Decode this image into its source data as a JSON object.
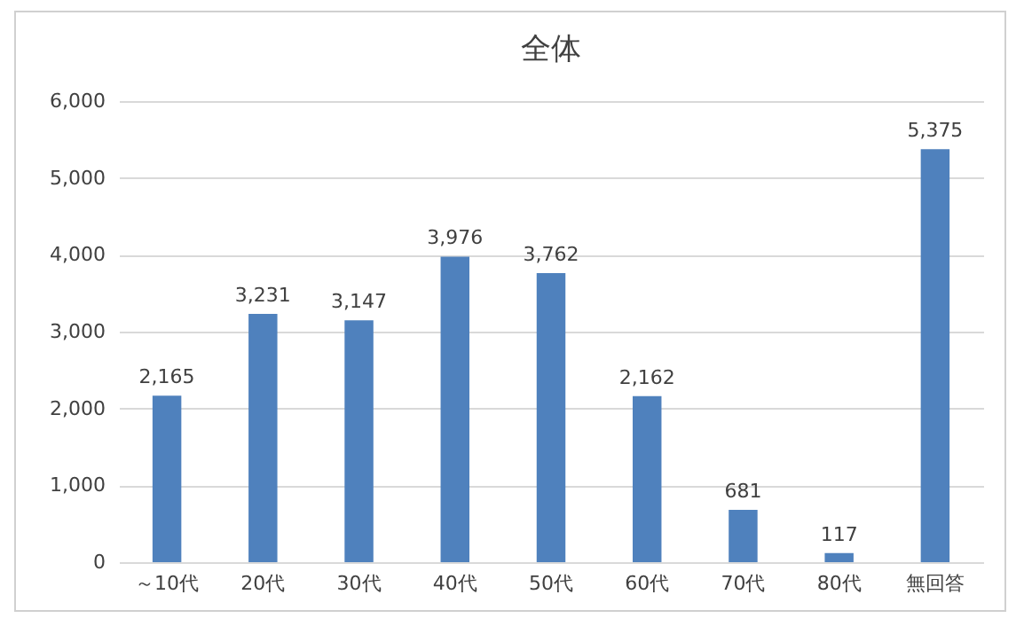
{
  "chart_data": {
    "type": "bar",
    "title": "全体",
    "categories": [
      "～10代",
      "20代",
      "30代",
      "40代",
      "50代",
      "60代",
      "70代",
      "80代",
      "無回答"
    ],
    "values": [
      2165,
      3231,
      3147,
      3976,
      3762,
      2162,
      681,
      117,
      5375
    ],
    "value_labels": [
      "2,165",
      "3,231",
      "3,147",
      "3,976",
      "3,762",
      "2,162",
      "681",
      "117",
      "5,375"
    ],
    "color": "#4f81bd",
    "ylim": [
      0,
      6000
    ],
    "yticks": [
      {
        "value": 0,
        "label": "0"
      },
      {
        "value": 1000,
        "label": "1,000"
      },
      {
        "value": 2000,
        "label": "2,000"
      },
      {
        "value": 3000,
        "label": "3,000"
      },
      {
        "value": 4000,
        "label": "4,000"
      },
      {
        "value": 5000,
        "label": "5,000"
      },
      {
        "value": 6000,
        "label": "6,000"
      }
    ],
    "grid": "y"
  }
}
